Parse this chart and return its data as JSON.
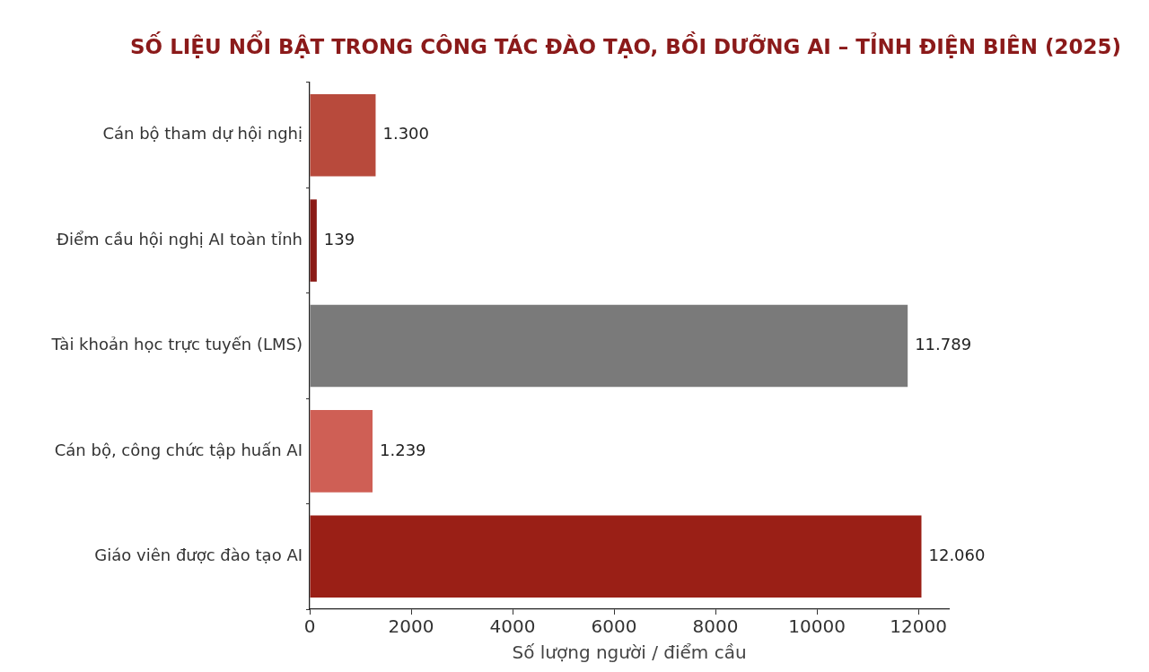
{
  "chart_data": {
    "type": "bar",
    "orientation": "horizontal",
    "title": "SỐ LIỆU NỔI BẬT TRONG CÔNG TÁC ĐÀO TẠO, BỒI DƯỠNG AI – TỈNH ĐIỆN BIÊN (2025)",
    "xlabel": "Số lượng người / điểm cầu",
    "categories": [
      "Cán bộ tham dự hội nghị",
      "Điểm cầu hội nghị AI toàn tỉnh",
      "Tài khoản học trực tuyến (LMS)",
      "Cán bộ, công chức tập huấn AI",
      "Giáo viên được đào tạo AI"
    ],
    "values": [
      1300,
      139,
      11789,
      1239,
      12060
    ],
    "value_labels": [
      "1.300",
      "139",
      "11.789",
      "1.239",
      "12.060"
    ],
    "colors": [
      "#b84a3c",
      "#8b1a16",
      "#7a7a7a",
      "#cf5f55",
      "#9a1f16"
    ],
    "xlim": [
      0,
      12600
    ],
    "xticks": [
      0,
      2000,
      4000,
      6000,
      8000,
      10000,
      12000
    ]
  }
}
